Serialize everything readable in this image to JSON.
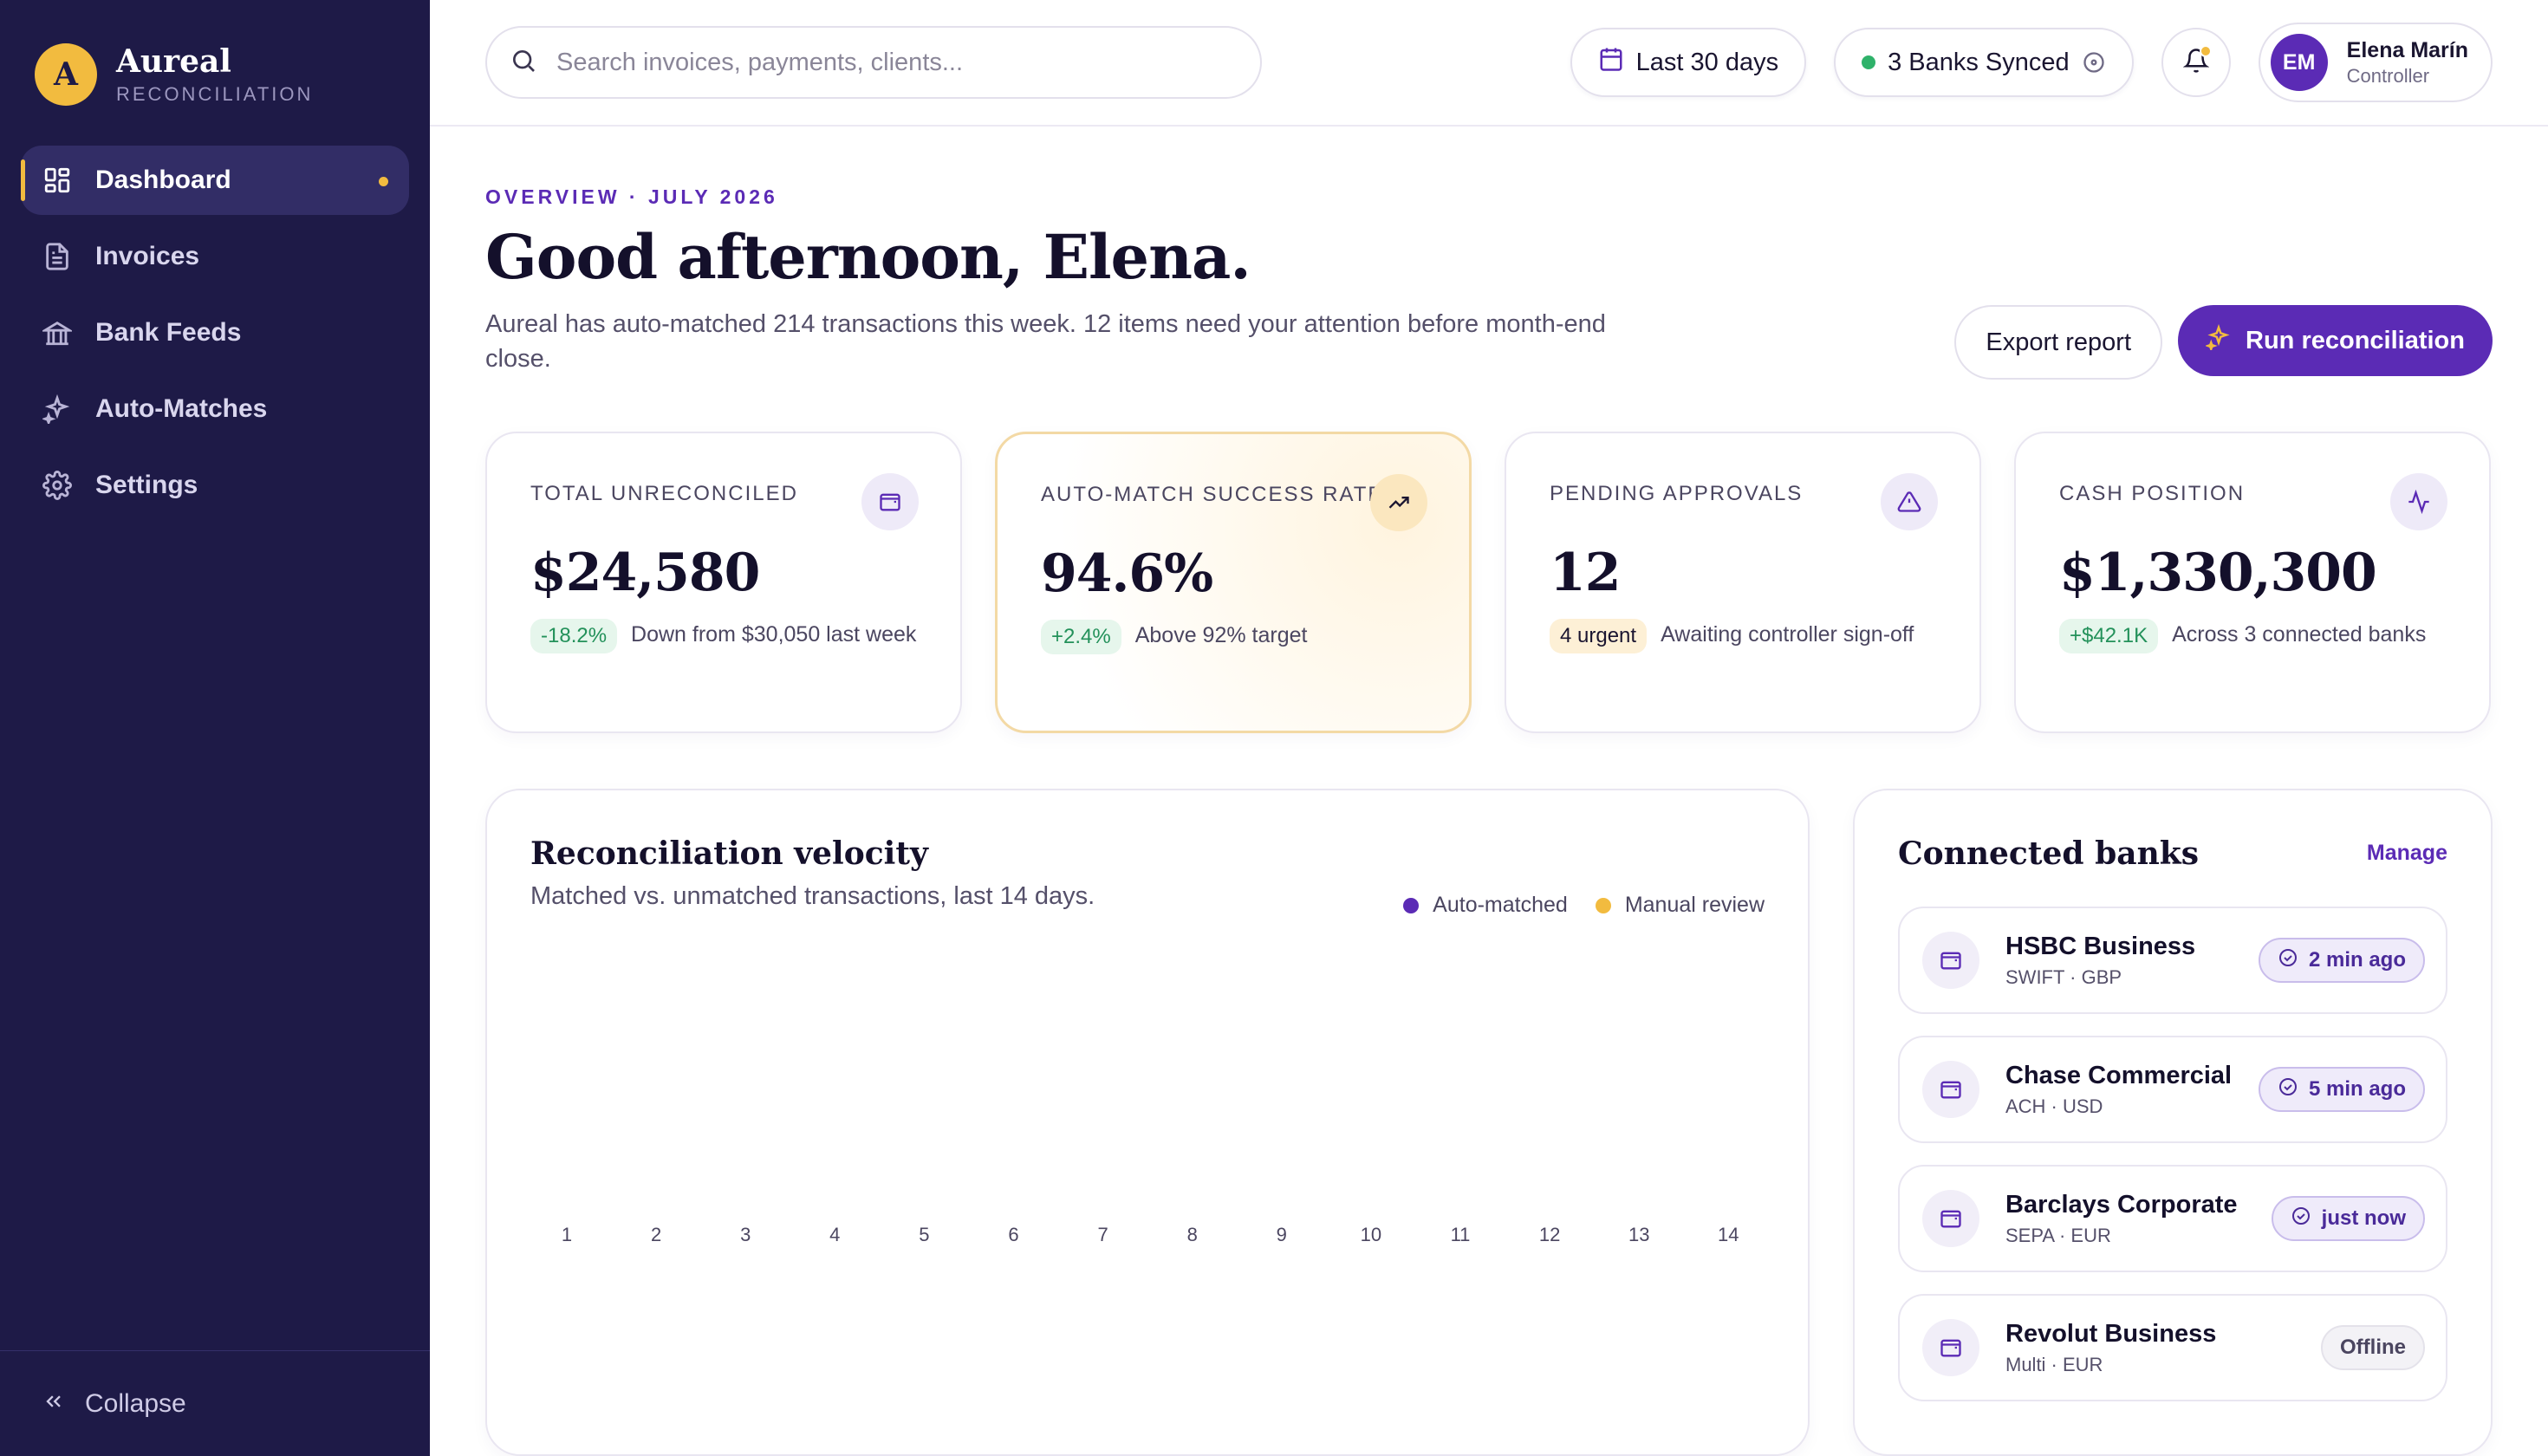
{
  "brand": {
    "logo_letter": "A",
    "name": "Aureal",
    "subtitle": "RECONCILIATION"
  },
  "sidebar": {
    "items": [
      {
        "label": "Dashboard",
        "icon": "dashboard-icon",
        "active": true
      },
      {
        "label": "Invoices",
        "icon": "invoice-icon"
      },
      {
        "label": "Bank Feeds",
        "icon": "bank-icon"
      },
      {
        "label": "Auto-Matches",
        "icon": "sparkles-icon"
      },
      {
        "label": "Settings",
        "icon": "gear-icon"
      }
    ],
    "collapse_label": "Collapse"
  },
  "topbar": {
    "search_placeholder": "Search invoices, payments, clients...",
    "date_range": "Last 30 days",
    "sync_status": "3 Banks Synced",
    "user": {
      "initials": "EM",
      "name": "Elena Marín",
      "role": "Controller"
    }
  },
  "header": {
    "eyebrow": "OVERVIEW · JULY 2026",
    "title": "Good afternoon, Elena.",
    "subtitle": "Aureal has auto-matched 214 transactions this week. 12 items need your attention before month-end close.",
    "export_label": "Export report",
    "run_label": "Run reconciliation"
  },
  "kpis": [
    {
      "label": "TOTAL UNRECONCILED",
      "value": "$24,580",
      "chip": "-18.2%",
      "note": "Down from $30,050 last week",
      "icon": "wallet-icon"
    },
    {
      "label": "AUTO-MATCH SUCCESS RATE",
      "value": "94.6%",
      "chip": "+2.4%",
      "note": "Above 92% target",
      "icon": "trend-up-icon"
    },
    {
      "label": "PENDING APPROVALS",
      "value": "12",
      "chip": "4 urgent",
      "note": "Awaiting controller sign-off",
      "icon": "warning-icon"
    },
    {
      "label": "CASH POSITION",
      "value": "$1,330,300",
      "chip": "+$42.1K",
      "note": "Across 3 connected banks",
      "icon": "activity-icon"
    }
  ],
  "velocity": {
    "title": "Reconciliation velocity",
    "subtitle": "Matched vs. unmatched transactions, last 14 days.",
    "legend": [
      "Auto-matched",
      "Manual review"
    ],
    "colors": {
      "auto": "#5b2bb5",
      "manual": "#f2bb3f"
    },
    "days": [
      "1",
      "2",
      "3",
      "4",
      "5",
      "6",
      "7",
      "8",
      "9",
      "10",
      "11",
      "12",
      "13",
      "14"
    ]
  },
  "banks": {
    "title": "Connected banks",
    "manage_label": "Manage",
    "items": [
      {
        "name": "HSBC Business",
        "meta": "SWIFT · GBP",
        "status": "2 min ago",
        "synced": true
      },
      {
        "name": "Chase Commercial",
        "meta": "ACH · USD",
        "status": "5 min ago",
        "synced": true
      },
      {
        "name": "Barclays Corporate",
        "meta": "SEPA · EUR",
        "status": "just now",
        "synced": true
      },
      {
        "name": "Revolut Business",
        "meta": "Multi · EUR",
        "status": "Offline",
        "synced": false
      }
    ]
  }
}
